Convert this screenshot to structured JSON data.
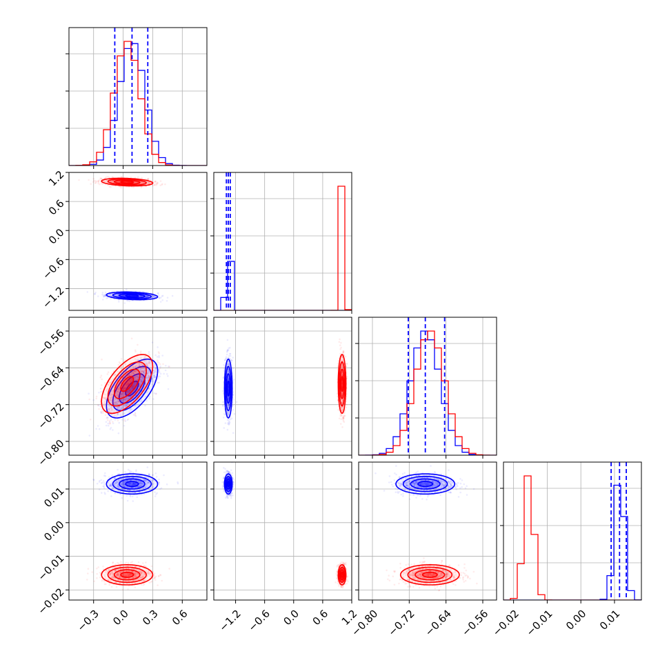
{
  "chart_data": {
    "type": "corner",
    "colors": {
      "series_a": "#0000ff",
      "series_b": "#ff0000"
    },
    "grid": true,
    "parameters": [
      {
        "id": "p1",
        "range": [
          -0.55,
          0.85
        ],
        "ticks": [
          "−0.3",
          "0.0",
          "0.3",
          "0.6"
        ],
        "tick_values": [
          -0.3,
          0.0,
          0.3,
          0.6
        ]
      },
      {
        "id": "p2",
        "range": [
          -1.65,
          1.2
        ],
        "ticks": [
          "−1.2",
          "−0.6",
          "0.0",
          "0.6",
          "1.2"
        ],
        "tick_values": [
          -1.2,
          -0.6,
          0.0,
          0.6,
          1.2
        ]
      },
      {
        "id": "p3",
        "range": [
          -0.83,
          -0.53
        ],
        "ticks": [
          "−0.80",
          "−0.72",
          "−0.64",
          "−0.56"
        ],
        "tick_values": [
          -0.8,
          -0.72,
          -0.64,
          -0.56
        ]
      },
      {
        "id": "p4",
        "range": [
          -0.023,
          0.018
        ],
        "ticks": [
          "−0.02",
          "−0.01",
          "0.00",
          "0.01"
        ],
        "tick_values": [
          -0.02,
          -0.01,
          0.0,
          0.01
        ]
      }
    ],
    "series": [
      {
        "color": "#0000ff",
        "mean": [
          0.09,
          -1.35,
          -0.685,
          0.0115
        ],
        "sd": [
          0.13,
          0.04,
          0.032,
          0.0015
        ],
        "quantiles": [
          [
            -0.085,
            0.09,
            0.25
          ],
          [
            -1.39,
            -1.35,
            -1.31
          ],
          [
            -0.722,
            -0.685,
            -0.643
          ],
          [
            0.009,
            0.0115,
            0.0135
          ]
        ]
      },
      {
        "color": "#ff0000",
        "mean": [
          0.04,
          1.0,
          -0.675,
          -0.0155
        ],
        "sd": [
          0.13,
          0.04,
          0.032,
          0.0015
        ]
      }
    ],
    "correlations": {
      "p1_p3": 0.6,
      "p1_p2": -0.25,
      "p3_p4": 0.0
    }
  }
}
